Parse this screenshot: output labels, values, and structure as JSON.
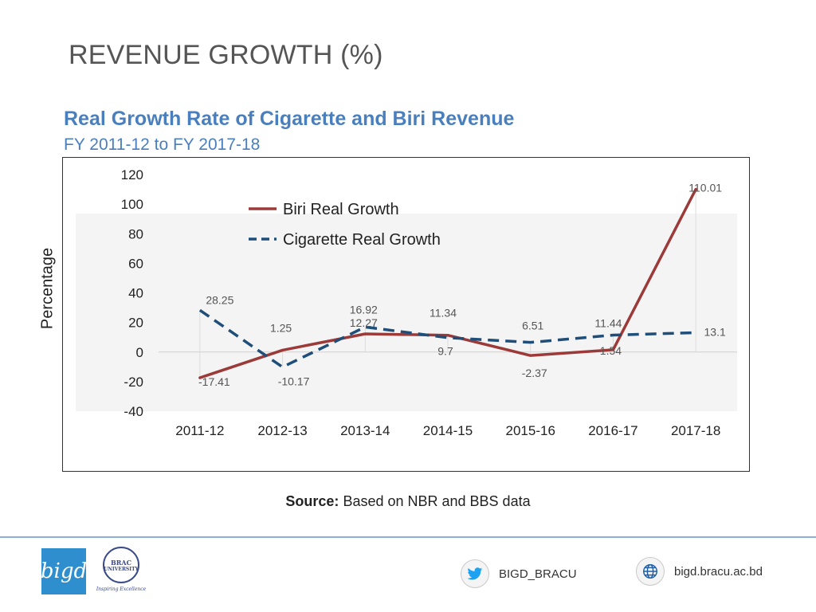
{
  "slide": {
    "title": "REVENUE GROWTH (%)"
  },
  "chart_data": {
    "type": "line",
    "title": "Real Growth Rate of Cigarette and Biri Revenue",
    "subtitle": "FY 2011-12 to FY 2017-18",
    "xlabel": "",
    "ylabel": "Percentage",
    "categories": [
      "2011-12",
      "2012-13",
      "2013-14",
      "2014-15",
      "2015-16",
      "2016-17",
      "2017-18"
    ],
    "ylim": [
      -40,
      120
    ],
    "yticks": [
      120,
      100,
      80,
      60,
      40,
      20,
      0,
      -20,
      -40
    ],
    "legend_position": "top-center",
    "series": [
      {
        "name": "Biri Real Growth",
        "color": "#9b3a38",
        "dash": "solid",
        "values": [
          -17.41,
          1.25,
          12.27,
          11.34,
          -2.37,
          1.54,
          110.01
        ],
        "labels": [
          "-17.41",
          "1.25",
          "12.27",
          "11.34",
          "-2.37",
          "1.54",
          "110.01"
        ]
      },
      {
        "name": "Cigarette Real Growth",
        "color": "#1f4e79",
        "dash": "dashed",
        "values": [
          28.25,
          -10.17,
          16.92,
          9.7,
          6.51,
          11.44,
          13.1
        ],
        "labels": [
          "28.25",
          "-10.17",
          "16.92",
          "9.7",
          "6.51",
          "11.44",
          "13.1"
        ]
      }
    ]
  },
  "source": {
    "label": "Source:",
    "text": "Based on NBR and BBS data"
  },
  "footer": {
    "bigd_logo_text": "bigd",
    "brac_line1": "BRAC",
    "brac_line2": "UNIVERSITY",
    "brac_tagline": "Inspiring Excellence",
    "twitter_icon": "twitter-icon",
    "twitter_handle": "BIGD_BRACU",
    "globe_icon": "globe-icon",
    "website": "bigd.bracu.ac.bd"
  }
}
